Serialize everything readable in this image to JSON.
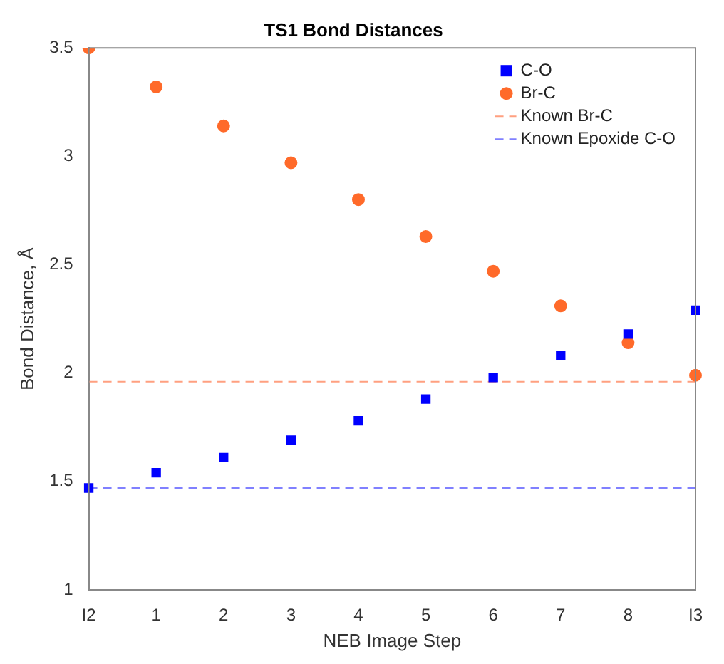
{
  "chart_data": {
    "type": "scatter",
    "title": "TS1 Bond Distances",
    "xlabel": "NEB Image Step",
    "ylabel": "Bond Distance, Å",
    "categories": [
      "I2",
      "1",
      "2",
      "3",
      "4",
      "5",
      "6",
      "7",
      "8",
      "I3"
    ],
    "series": [
      {
        "name": "C-O",
        "color": "#0000ff",
        "marker": "square",
        "values": [
          1.47,
          1.54,
          1.61,
          1.69,
          1.78,
          1.88,
          1.98,
          2.08,
          2.18,
          2.29
        ]
      },
      {
        "name": "Br-C",
        "color": "#ff6a2a",
        "marker": "circle",
        "values": [
          3.5,
          3.32,
          3.14,
          2.97,
          2.8,
          2.63,
          2.47,
          2.31,
          2.14,
          1.99
        ]
      }
    ],
    "ref_lines": [
      {
        "axis": "y",
        "value": 1.96,
        "label": "Known Br-C",
        "color": "#ffa080",
        "line_style": "dashed"
      },
      {
        "axis": "y",
        "value": 1.47,
        "label": "Known Epoxide C-O",
        "color": "#8080ff",
        "line_style": "dashed"
      }
    ],
    "ylim": [
      1,
      3.5
    ],
    "yticks": [
      1,
      1.5,
      2,
      2.5,
      3,
      3.5
    ],
    "grid": false,
    "legend": "top right"
  }
}
